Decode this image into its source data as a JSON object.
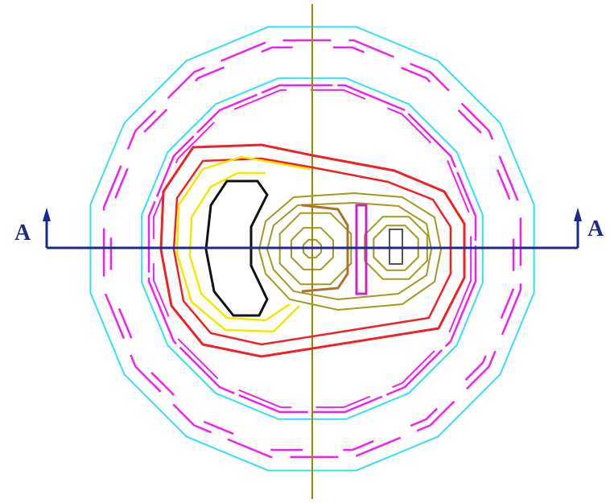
{
  "labels": {
    "left": "A",
    "right": "A"
  }
}
